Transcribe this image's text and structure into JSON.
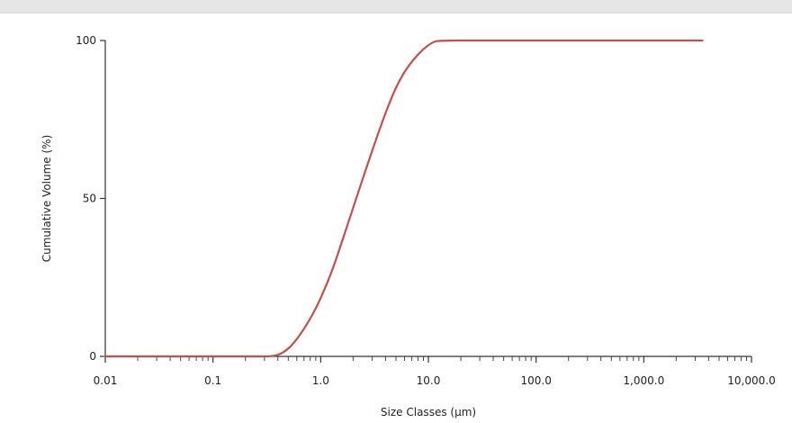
{
  "chart_data": {
    "type": "line",
    "xscale": "log",
    "xlim": [
      0.01,
      10000
    ],
    "ylim": [
      0,
      100
    ],
    "xlabel": "Size Classes (µm)",
    "ylabel": "Cumulative Volume (%)",
    "x_tick_labels": [
      "0.01",
      "0.1",
      "1.0",
      "10.0",
      "100.0",
      "1,000.0",
      "10,000.0"
    ],
    "x_tick_values": [
      0.01,
      0.1,
      1,
      10,
      100,
      1000,
      10000
    ],
    "y_tick_labels": [
      "0",
      "50",
      "100"
    ],
    "y_tick_values": [
      0,
      50,
      100
    ],
    "grid": false,
    "line_color": "#c0504d",
    "series": [
      {
        "x": [
          0.01,
          0.1,
          0.3,
          0.4,
          0.5,
          0.6,
          0.8,
          1.0,
          1.3,
          1.6,
          2.0,
          2.5,
          3.0,
          4.0,
          5.0,
          6.0,
          8.0,
          10.0,
          12.0,
          20,
          100,
          1000,
          3500
        ],
        "y": [
          0,
          0,
          0,
          0.5,
          2.5,
          5.5,
          12,
          18.5,
          28,
          37,
          47,
          57,
          65,
          77,
          85,
          90,
          95.5,
          98.5,
          99.8,
          100,
          100,
          100,
          100
        ]
      }
    ]
  }
}
